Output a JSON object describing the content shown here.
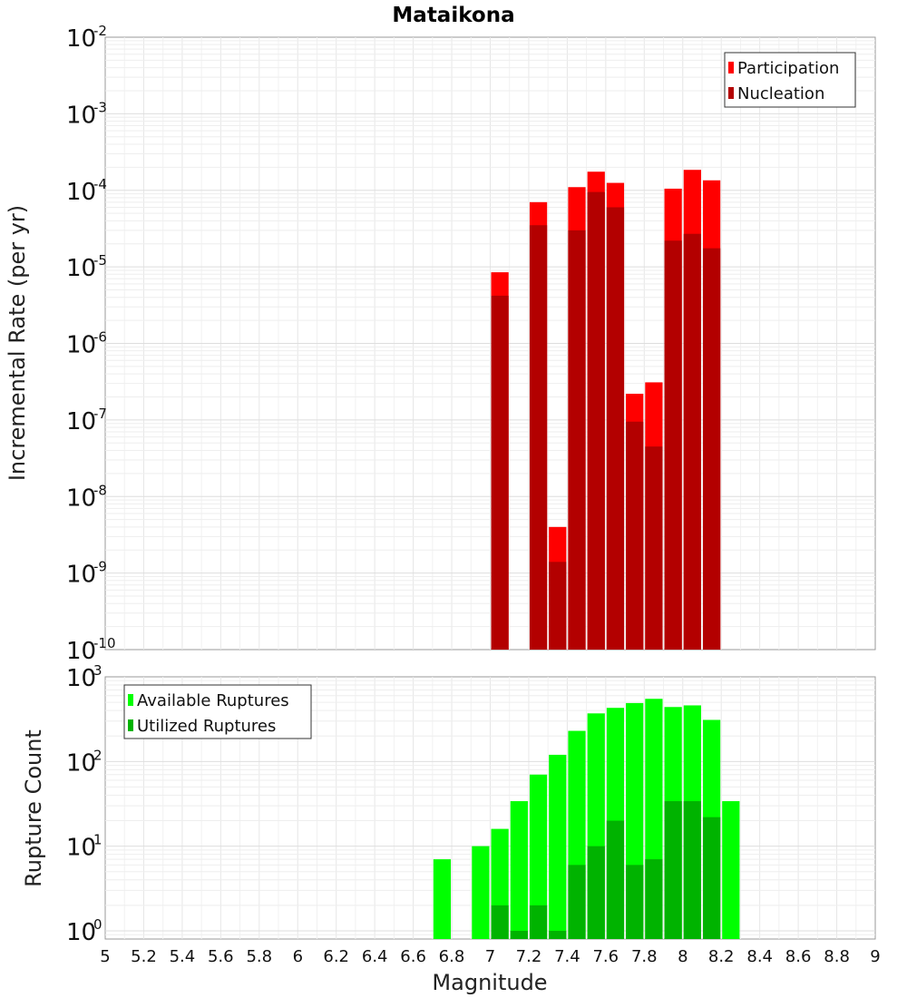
{
  "chart_data": [
    {
      "type": "bar",
      "title": "Mataikona",
      "xlabel": "",
      "ylabel": "Incremental Rate (per yr)",
      "yscale": "log",
      "ylim": [
        1e-10,
        0.01
      ],
      "xlim": [
        5,
        9
      ],
      "grid": true,
      "legend": "top-right",
      "y_tick_labels": [
        {
          "base": "10",
          "exp": "-10"
        },
        {
          "base": "10",
          "exp": "-9"
        },
        {
          "base": "10",
          "exp": "-8"
        },
        {
          "base": "10",
          "exp": "-7"
        },
        {
          "base": "10",
          "exp": "-6"
        },
        {
          "base": "10",
          "exp": "-5"
        },
        {
          "base": "10",
          "exp": "-4"
        },
        {
          "base": "10",
          "exp": "-3"
        },
        {
          "base": "10",
          "exp": "-2"
        }
      ],
      "series": [
        {
          "name": "Participation",
          "color": "#ff0000",
          "points": [
            {
              "x": 7.05,
              "y": 8.5e-06
            },
            {
              "x": 7.25,
              "y": 7e-05
            },
            {
              "x": 7.35,
              "y": 4e-09
            },
            {
              "x": 7.45,
              "y": 0.00011
            },
            {
              "x": 7.55,
              "y": 0.000175
            },
            {
              "x": 7.65,
              "y": 0.000125
            },
            {
              "x": 7.75,
              "y": 2.2e-07
            },
            {
              "x": 7.85,
              "y": 3.1e-07
            },
            {
              "x": 7.95,
              "y": 0.000105
            },
            {
              "x": 8.05,
              "y": 0.000185
            },
            {
              "x": 8.15,
              "y": 0.000135
            }
          ]
        },
        {
          "name": "Nucleation",
          "color": "#b30000",
          "points": [
            {
              "x": 7.05,
              "y": 4.2e-06
            },
            {
              "x": 7.25,
              "y": 3.5e-05
            },
            {
              "x": 7.35,
              "y": 1.4e-09
            },
            {
              "x": 7.45,
              "y": 3e-05
            },
            {
              "x": 7.55,
              "y": 9.5e-05
            },
            {
              "x": 7.65,
              "y": 6e-05
            },
            {
              "x": 7.75,
              "y": 9.5e-08
            },
            {
              "x": 7.85,
              "y": 4.5e-08
            },
            {
              "x": 7.95,
              "y": 2.2e-05
            },
            {
              "x": 8.05,
              "y": 2.7e-05
            },
            {
              "x": 8.15,
              "y": 1.75e-05
            }
          ]
        }
      ]
    },
    {
      "type": "bar",
      "title": "",
      "xlabel": "Magnitude",
      "ylabel": "Rupture Count",
      "yscale": "log",
      "ylim": [
        0.8,
        1000
      ],
      "xlim": [
        5,
        9
      ],
      "grid": true,
      "legend": "top-left",
      "y_tick_labels": [
        {
          "base": "10",
          "exp": "0"
        },
        {
          "base": "10",
          "exp": "1"
        },
        {
          "base": "10",
          "exp": "2"
        },
        {
          "base": "10",
          "exp": "3"
        }
      ],
      "x_tick_labels": [
        "5",
        "5.2",
        "5.4",
        "5.6",
        "5.8",
        "6",
        "6.2",
        "6.4",
        "6.6",
        "6.8",
        "7",
        "7.2",
        "7.4",
        "7.6",
        "7.8",
        "8",
        "8.2",
        "8.4",
        "8.6",
        "8.8",
        "9"
      ],
      "series": [
        {
          "name": "Available Ruptures",
          "color": "#00ff00",
          "points": [
            {
              "x": 6.75,
              "y": 7
            },
            {
              "x": 6.95,
              "y": 10
            },
            {
              "x": 7.05,
              "y": 16
            },
            {
              "x": 7.15,
              "y": 34
            },
            {
              "x": 7.25,
              "y": 70
            },
            {
              "x": 7.35,
              "y": 120
            },
            {
              "x": 7.45,
              "y": 230
            },
            {
              "x": 7.55,
              "y": 370
            },
            {
              "x": 7.65,
              "y": 430
            },
            {
              "x": 7.75,
              "y": 490
            },
            {
              "x": 7.85,
              "y": 550
            },
            {
              "x": 7.95,
              "y": 440
            },
            {
              "x": 8.05,
              "y": 460
            },
            {
              "x": 8.15,
              "y": 310
            },
            {
              "x": 8.25,
              "y": 34
            }
          ]
        },
        {
          "name": "Utilized Ruptures",
          "color": "#00b300",
          "points": [
            {
              "x": 7.05,
              "y": 2
            },
            {
              "x": 7.15,
              "y": 1
            },
            {
              "x": 7.25,
              "y": 2
            },
            {
              "x": 7.35,
              "y": 1
            },
            {
              "x": 7.45,
              "y": 6
            },
            {
              "x": 7.55,
              "y": 10
            },
            {
              "x": 7.65,
              "y": 20
            },
            {
              "x": 7.75,
              "y": 6
            },
            {
              "x": 7.85,
              "y": 7
            },
            {
              "x": 7.95,
              "y": 34
            },
            {
              "x": 8.05,
              "y": 34
            },
            {
              "x": 8.15,
              "y": 22
            }
          ]
        }
      ]
    }
  ]
}
